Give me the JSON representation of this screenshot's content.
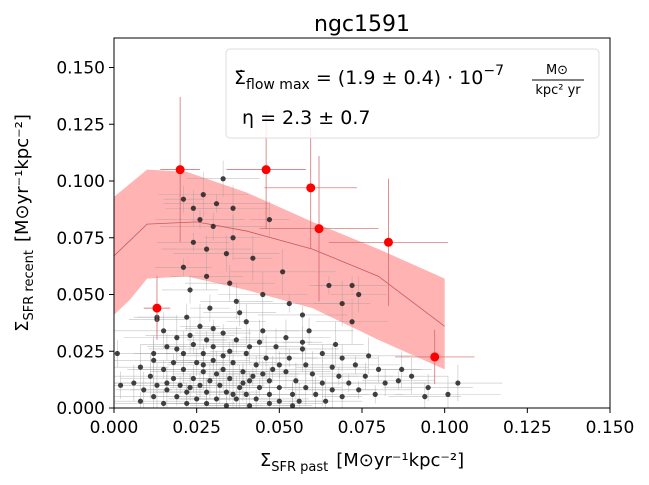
{
  "chart_data": {
    "type": "scatter",
    "title": "ngc1591",
    "xlabel_main": "Σ",
    "xlabel_sub": "SFR past",
    "xlabel_units": "[M⊙yr⁻¹kpc⁻²]",
    "ylabel_main": "Σ",
    "ylabel_sub": "SFR recent",
    "ylabel_units": "[M⊙yr⁻¹kpc⁻²]",
    "xlim": [
      0.0,
      0.15
    ],
    "ylim": [
      0.0,
      0.163
    ],
    "xticks": [
      0.0,
      0.025,
      0.05,
      0.075,
      0.1,
      0.125,
      0.15
    ],
    "xtick_labels": [
      "0.000",
      "0.025",
      "0.050",
      "0.075",
      "0.100",
      "0.125",
      "0.150"
    ],
    "yticks": [
      0.0,
      0.025,
      0.05,
      0.075,
      0.1,
      0.125,
      0.15
    ],
    "ytick_labels": [
      "0.000",
      "0.025",
      "0.050",
      "0.075",
      "0.100",
      "0.125",
      "0.150"
    ],
    "annotation": {
      "line1_lhs": "Σ̇",
      "line1_sub": "flow max",
      "line1_eq": " = (1.9 ± 0.4) · 10",
      "line1_exp": "−7",
      "line1_frac_num": "M⊙",
      "line1_frac_den": "kpc² yr",
      "line2": "η = 2.3 ± 0.7"
    },
    "colors": {
      "band": "#ffb3b3",
      "model_line": "#c85a5a",
      "highlight": "#ff0000",
      "points": "#222222",
      "errorbar_gray": "#9a9a9a",
      "errorbar_red": "#d06060"
    },
    "model_band_upper": [
      [
        0.0,
        0.093
      ],
      [
        0.01,
        0.105
      ],
      [
        0.022,
        0.104
      ],
      [
        0.04,
        0.095
      ],
      [
        0.06,
        0.082
      ],
      [
        0.08,
        0.07
      ],
      [
        0.1,
        0.057
      ]
    ],
    "model_band_lower": [
      [
        0.0,
        0.041
      ],
      [
        0.005,
        0.048
      ],
      [
        0.01,
        0.057
      ],
      [
        0.022,
        0.058
      ],
      [
        0.04,
        0.052
      ],
      [
        0.06,
        0.044
      ],
      [
        0.08,
        0.03
      ],
      [
        0.1,
        0.017
      ]
    ],
    "model_line": [
      [
        0.0,
        0.067
      ],
      [
        0.01,
        0.081
      ],
      [
        0.025,
        0.082
      ],
      [
        0.04,
        0.078
      ],
      [
        0.06,
        0.07
      ],
      [
        0.08,
        0.058
      ],
      [
        0.1,
        0.036
      ]
    ],
    "highlight_points": [
      {
        "x": 0.013,
        "y": 0.044,
        "xerr": 0.004,
        "yerr": 0.014
      },
      {
        "x": 0.02,
        "y": 0.105,
        "xerr": 0.006,
        "yerr": 0.032
      },
      {
        "x": 0.046,
        "y": 0.105,
        "xerr": 0.012,
        "yerr": 0.026
      },
      {
        "x": 0.0595,
        "y": 0.097,
        "xerr": 0.014,
        "yerr": 0.027
      },
      {
        "x": 0.062,
        "y": 0.079,
        "xerr": 0.018,
        "yerr": 0.032
      },
      {
        "x": 0.083,
        "y": 0.073,
        "xerr": 0.018,
        "yerr": 0.028
      },
      {
        "x": 0.097,
        "y": 0.0225,
        "xerr": 0.012,
        "yerr": 0.012
      }
    ],
    "points": [
      {
        "x": 0.013,
        "y": 0.04
      },
      {
        "x": 0.013,
        "y": 0.039
      },
      {
        "x": 0.033,
        "y": 0.101
      },
      {
        "x": 0.027,
        "y": 0.094
      },
      {
        "x": 0.031,
        "y": 0.09
      },
      {
        "x": 0.021,
        "y": 0.092
      },
      {
        "x": 0.024,
        "y": 0.088
      },
      {
        "x": 0.036,
        "y": 0.088
      },
      {
        "x": 0.026,
        "y": 0.083
      },
      {
        "x": 0.03,
        "y": 0.08
      },
      {
        "x": 0.047,
        "y": 0.083
      },
      {
        "x": 0.036,
        "y": 0.075
      },
      {
        "x": 0.024,
        "y": 0.073
      },
      {
        "x": 0.028,
        "y": 0.07
      },
      {
        "x": 0.034,
        "y": 0.068
      },
      {
        "x": 0.042,
        "y": 0.066
      },
      {
        "x": 0.021,
        "y": 0.062
      },
      {
        "x": 0.028,
        "y": 0.058
      },
      {
        "x": 0.035,
        "y": 0.055
      },
      {
        "x": 0.051,
        "y": 0.06
      },
      {
        "x": 0.065,
        "y": 0.054
      },
      {
        "x": 0.023,
        "y": 0.052
      },
      {
        "x": 0.037,
        "y": 0.047
      },
      {
        "x": 0.045,
        "y": 0.05
      },
      {
        "x": 0.053,
        "y": 0.046
      },
      {
        "x": 0.029,
        "y": 0.044
      },
      {
        "x": 0.074,
        "y": 0.05
      },
      {
        "x": 0.072,
        "y": 0.038
      },
      {
        "x": 0.057,
        "y": 0.041
      },
      {
        "x": 0.022,
        "y": 0.04
      },
      {
        "x": 0.04,
        "y": 0.038
      },
      {
        "x": 0.069,
        "y": 0.046
      },
      {
        "x": 0.072,
        "y": 0.054
      },
      {
        "x": 0.059,
        "y": 0.034
      },
      {
        "x": 0.015,
        "y": 0.034
      },
      {
        "x": 0.026,
        "y": 0.036
      },
      {
        "x": 0.033,
        "y": 0.033
      },
      {
        "x": 0.045,
        "y": 0.034
      },
      {
        "x": 0.052,
        "y": 0.031
      },
      {
        "x": 0.019,
        "y": 0.031
      },
      {
        "x": 0.028,
        "y": 0.03
      },
      {
        "x": 0.037,
        "y": 0.03
      },
      {
        "x": 0.041,
        "y": 0.027
      },
      {
        "x": 0.03,
        "y": 0.027
      },
      {
        "x": 0.024,
        "y": 0.028
      },
      {
        "x": 0.016,
        "y": 0.027
      },
      {
        "x": 0.049,
        "y": 0.027
      },
      {
        "x": 0.057,
        "y": 0.026
      },
      {
        "x": 0.063,
        "y": 0.024
      },
      {
        "x": 0.001,
        "y": 0.024
      },
      {
        "x": 0.012,
        "y": 0.024
      },
      {
        "x": 0.021,
        "y": 0.024
      },
      {
        "x": 0.027,
        "y": 0.024
      },
      {
        "x": 0.033,
        "y": 0.023
      },
      {
        "x": 0.04,
        "y": 0.024
      },
      {
        "x": 0.046,
        "y": 0.022
      },
      {
        "x": 0.053,
        "y": 0.022
      },
      {
        "x": 0.069,
        "y": 0.022
      },
      {
        "x": 0.077,
        "y": 0.023
      },
      {
        "x": 0.012,
        "y": 0.021
      },
      {
        "x": 0.018,
        "y": 0.02
      },
      {
        "x": 0.025,
        "y": 0.02
      },
      {
        "x": 0.03,
        "y": 0.021
      },
      {
        "x": 0.036,
        "y": 0.02
      },
      {
        "x": 0.043,
        "y": 0.019
      },
      {
        "x": 0.05,
        "y": 0.019
      },
      {
        "x": 0.058,
        "y": 0.019
      },
      {
        "x": 0.066,
        "y": 0.018
      },
      {
        "x": 0.073,
        "y": 0.019
      },
      {
        "x": 0.08,
        "y": 0.017
      },
      {
        "x": 0.087,
        "y": 0.017
      },
      {
        "x": 0.008,
        "y": 0.018
      },
      {
        "x": 0.015,
        "y": 0.017
      },
      {
        "x": 0.021,
        "y": 0.017
      },
      {
        "x": 0.027,
        "y": 0.016
      },
      {
        "x": 0.033,
        "y": 0.017
      },
      {
        "x": 0.039,
        "y": 0.016
      },
      {
        "x": 0.045,
        "y": 0.015
      },
      {
        "x": 0.052,
        "y": 0.016
      },
      {
        "x": 0.06,
        "y": 0.015
      },
      {
        "x": 0.068,
        "y": 0.014
      },
      {
        "x": 0.076,
        "y": 0.014
      },
      {
        "x": 0.09,
        "y": 0.014
      },
      {
        "x": 0.011,
        "y": 0.014
      },
      {
        "x": 0.018,
        "y": 0.013
      },
      {
        "x": 0.024,
        "y": 0.013
      },
      {
        "x": 0.029,
        "y": 0.012
      },
      {
        "x": 0.035,
        "y": 0.013
      },
      {
        "x": 0.041,
        "y": 0.012
      },
      {
        "x": 0.047,
        "y": 0.012
      },
      {
        "x": 0.055,
        "y": 0.012
      },
      {
        "x": 0.063,
        "y": 0.011
      },
      {
        "x": 0.071,
        "y": 0.011
      },
      {
        "x": 0.082,
        "y": 0.011
      },
      {
        "x": 0.006,
        "y": 0.011
      },
      {
        "x": 0.013,
        "y": 0.01
      },
      {
        "x": 0.02,
        "y": 0.01
      },
      {
        "x": 0.026,
        "y": 0.01
      },
      {
        "x": 0.032,
        "y": 0.01
      },
      {
        "x": 0.038,
        "y": 0.009
      },
      {
        "x": 0.044,
        "y": 0.009
      },
      {
        "x": 0.05,
        "y": 0.009
      },
      {
        "x": 0.058,
        "y": 0.009
      },
      {
        "x": 0.066,
        "y": 0.008
      },
      {
        "x": 0.074,
        "y": 0.008
      },
      {
        "x": 0.002,
        "y": 0.01
      },
      {
        "x": 0.009,
        "y": 0.008
      },
      {
        "x": 0.016,
        "y": 0.008
      },
      {
        "x": 0.022,
        "y": 0.007
      },
      {
        "x": 0.028,
        "y": 0.007
      },
      {
        "x": 0.034,
        "y": 0.007
      },
      {
        "x": 0.04,
        "y": 0.006
      },
      {
        "x": 0.047,
        "y": 0.006
      },
      {
        "x": 0.054,
        "y": 0.006
      },
      {
        "x": 0.061,
        "y": 0.006
      },
      {
        "x": 0.069,
        "y": 0.005
      },
      {
        "x": 0.079,
        "y": 0.006
      },
      {
        "x": 0.094,
        "y": 0.005
      },
      {
        "x": 0.104,
        "y": 0.011
      },
      {
        "x": 0.012,
        "y": 0.005
      },
      {
        "x": 0.019,
        "y": 0.005
      },
      {
        "x": 0.025,
        "y": 0.004
      },
      {
        "x": 0.031,
        "y": 0.004
      },
      {
        "x": 0.037,
        "y": 0.004
      },
      {
        "x": 0.043,
        "y": 0.004
      },
      {
        "x": 0.05,
        "y": 0.003
      },
      {
        "x": 0.056,
        "y": 0.003
      },
      {
        "x": 0.064,
        "y": 0.003
      },
      {
        "x": 0.008,
        "y": 0.003
      },
      {
        "x": 0.015,
        "y": 0.002
      },
      {
        "x": 0.022,
        "y": 0.002
      },
      {
        "x": 0.028,
        "y": 0.002
      },
      {
        "x": 0.034,
        "y": 0.001
      },
      {
        "x": 0.041,
        "y": 0.001
      },
      {
        "x": 0.047,
        "y": 0.002
      },
      {
        "x": 0.054,
        "y": 0.001
      },
      {
        "x": 0.03,
        "y": 0.035
      },
      {
        "x": 0.038,
        "y": 0.042
      },
      {
        "x": 0.023,
        "y": 0.032
      },
      {
        "x": 0.044,
        "y": 0.029
      },
      {
        "x": 0.035,
        "y": 0.025
      },
      {
        "x": 0.019,
        "y": 0.026
      },
      {
        "x": 0.027,
        "y": 0.019
      },
      {
        "x": 0.031,
        "y": 0.015
      },
      {
        "x": 0.016,
        "y": 0.011
      },
      {
        "x": 0.023,
        "y": 0.009
      },
      {
        "x": 0.039,
        "y": 0.011
      },
      {
        "x": 0.036,
        "y": 0.006
      },
      {
        "x": 0.042,
        "y": 0.014
      },
      {
        "x": 0.048,
        "y": 0.017
      },
      {
        "x": 0.057,
        "y": 0.029
      },
      {
        "x": 0.067,
        "y": 0.028
      },
      {
        "x": 0.086,
        "y": 0.012
      },
      {
        "x": 0.095,
        "y": 0.009
      },
      {
        "x": 0.101,
        "y": 0.006
      }
    ]
  }
}
